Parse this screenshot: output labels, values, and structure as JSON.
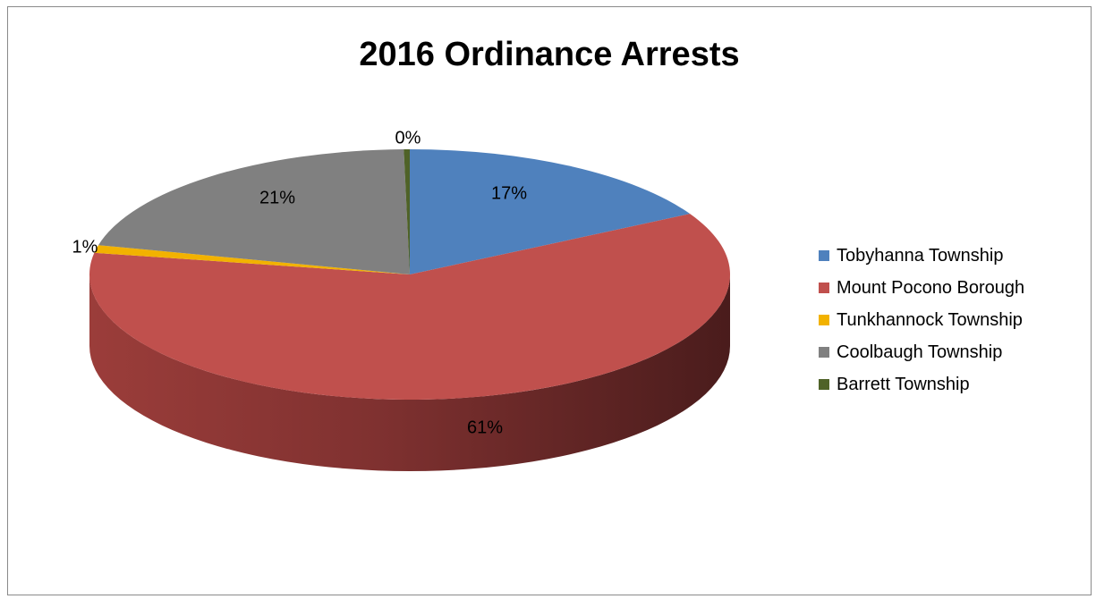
{
  "chart_data": {
    "type": "pie",
    "title": "2016 Ordinance Arrests",
    "slices": [
      {
        "name": "Tobyhanna Township",
        "percent": 17,
        "label": "17%",
        "color": "#4f81bd"
      },
      {
        "name": "Mount Pocono Borough",
        "percent": 61,
        "label": "61%",
        "color": "#c0504d"
      },
      {
        "name": "Tunkhannock Township",
        "percent": 1,
        "label": "1%",
        "color": "#f2b200"
      },
      {
        "name": "Coolbaugh Township",
        "percent": 21,
        "label": "21%",
        "color": "#808080"
      },
      {
        "name": "Barrett Township",
        "percent": 0,
        "label": "0%",
        "color": "#4f6228"
      }
    ],
    "legend_position": "right",
    "style": "3d"
  }
}
